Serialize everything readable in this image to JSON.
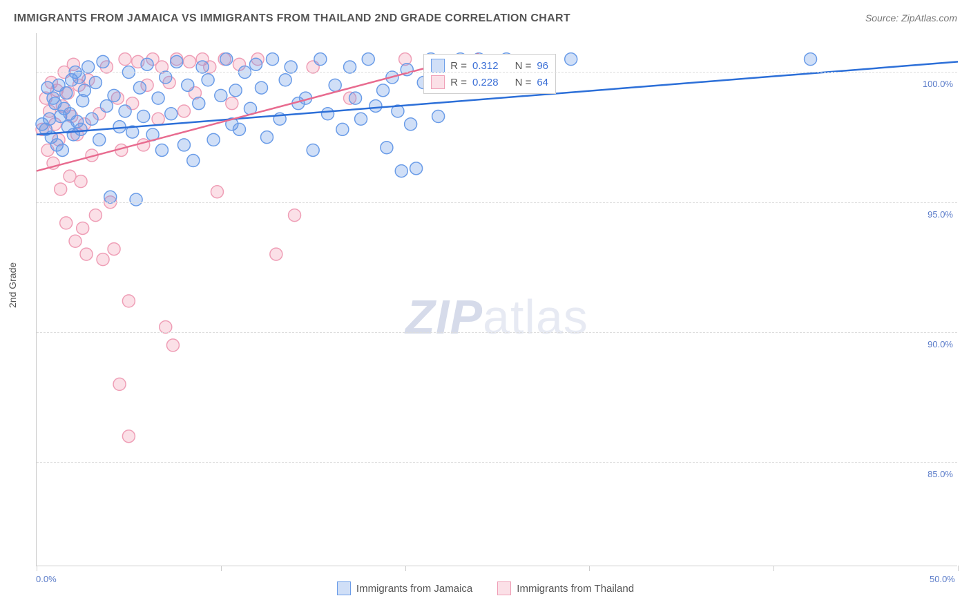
{
  "title": "IMMIGRANTS FROM JAMAICA VS IMMIGRANTS FROM THAILAND 2ND GRADE CORRELATION CHART",
  "source": "Source: ZipAtlas.com",
  "y_axis_title": "2nd Grade",
  "watermark": {
    "bold": "ZIP",
    "rest": "atlas"
  },
  "chart": {
    "type": "scatter",
    "xlim": [
      0,
      50
    ],
    "ylim": [
      81,
      101.5
    ],
    "x_ticks": [
      0,
      10,
      20,
      30,
      40,
      50
    ],
    "x_tick_labels": {
      "0": "0.0%",
      "50": "50.0%"
    },
    "y_ticks": [
      85,
      90,
      95,
      100
    ],
    "y_tick_labels": [
      "85.0%",
      "90.0%",
      "95.0%",
      "100.0%"
    ],
    "background_color": "#ffffff",
    "grid_color": "#dddddd",
    "axis_color": "#cccccc",
    "marker_radius": 9,
    "marker_stroke_width": 1.5,
    "trend_line_width": 2.5
  },
  "series": [
    {
      "name": "Immigrants from Jamaica",
      "fill_color": "rgba(100,150,230,0.30)",
      "stroke_color": "#6a9ce8",
      "trend_color": "#2c6fd8",
      "R": "0.312",
      "N": "96",
      "trend": {
        "x1": 0,
        "y1": 97.6,
        "x2": 50,
        "y2": 100.4
      },
      "points": [
        [
          0.3,
          98.0
        ],
        [
          0.5,
          97.8
        ],
        [
          0.6,
          99.4
        ],
        [
          0.7,
          98.2
        ],
        [
          0.8,
          97.5
        ],
        [
          0.9,
          99.0
        ],
        [
          1.0,
          98.8
        ],
        [
          1.1,
          97.2
        ],
        [
          1.2,
          99.5
        ],
        [
          1.3,
          98.3
        ],
        [
          1.4,
          97.0
        ],
        [
          1.5,
          98.6
        ],
        [
          1.6,
          99.2
        ],
        [
          1.7,
          97.9
        ],
        [
          1.8,
          98.4
        ],
        [
          1.9,
          99.7
        ],
        [
          2.0,
          97.6
        ],
        [
          2.1,
          100.0
        ],
        [
          2.2,
          98.1
        ],
        [
          2.3,
          99.8
        ],
        [
          2.4,
          97.8
        ],
        [
          2.5,
          98.9
        ],
        [
          2.6,
          99.3
        ],
        [
          2.8,
          100.2
        ],
        [
          3.0,
          98.2
        ],
        [
          3.2,
          99.6
        ],
        [
          3.4,
          97.4
        ],
        [
          3.6,
          100.4
        ],
        [
          3.8,
          98.7
        ],
        [
          4.0,
          95.2
        ],
        [
          4.2,
          99.1
        ],
        [
          4.5,
          97.9
        ],
        [
          4.8,
          98.5
        ],
        [
          5.0,
          100.0
        ],
        [
          5.2,
          97.7
        ],
        [
          5.4,
          95.1
        ],
        [
          5.6,
          99.4
        ],
        [
          5.8,
          98.3
        ],
        [
          6.0,
          100.3
        ],
        [
          6.3,
          97.6
        ],
        [
          6.6,
          99.0
        ],
        [
          6.8,
          97.0
        ],
        [
          7.0,
          99.8
        ],
        [
          7.3,
          98.4
        ],
        [
          7.6,
          100.4
        ],
        [
          8.0,
          97.2
        ],
        [
          8.2,
          99.5
        ],
        [
          8.5,
          96.6
        ],
        [
          8.8,
          98.8
        ],
        [
          9.0,
          100.2
        ],
        [
          9.3,
          99.7
        ],
        [
          9.6,
          97.4
        ],
        [
          10.0,
          99.1
        ],
        [
          10.3,
          100.5
        ],
        [
          10.6,
          98.0
        ],
        [
          10.8,
          99.3
        ],
        [
          11.0,
          97.8
        ],
        [
          11.3,
          100.0
        ],
        [
          11.6,
          98.6
        ],
        [
          11.9,
          100.3
        ],
        [
          12.2,
          99.4
        ],
        [
          12.5,
          97.5
        ],
        [
          12.8,
          100.5
        ],
        [
          13.2,
          98.2
        ],
        [
          13.5,
          99.7
        ],
        [
          13.8,
          100.2
        ],
        [
          14.2,
          98.8
        ],
        [
          14.6,
          99.0
        ],
        [
          15.0,
          97.0
        ],
        [
          15.4,
          100.5
        ],
        [
          15.8,
          98.4
        ],
        [
          16.2,
          99.5
        ],
        [
          16.6,
          97.8
        ],
        [
          17.0,
          100.2
        ],
        [
          17.3,
          99.0
        ],
        [
          17.6,
          98.2
        ],
        [
          18.0,
          100.5
        ],
        [
          18.4,
          98.7
        ],
        [
          18.8,
          99.3
        ],
        [
          19.0,
          97.1
        ],
        [
          19.3,
          99.8
        ],
        [
          19.6,
          98.5
        ],
        [
          19.8,
          96.2
        ],
        [
          20.1,
          100.1
        ],
        [
          20.3,
          98.0
        ],
        [
          20.6,
          96.3
        ],
        [
          21.0,
          99.6
        ],
        [
          21.4,
          100.5
        ],
        [
          21.8,
          98.3
        ],
        [
          22.3,
          100.3
        ],
        [
          23.0,
          100.5
        ],
        [
          24.0,
          100.5
        ],
        [
          25.5,
          100.5
        ],
        [
          27.0,
          99.8
        ],
        [
          29.0,
          100.5
        ],
        [
          42.0,
          100.5
        ]
      ]
    },
    {
      "name": "Immigrants from Thailand",
      "fill_color": "rgba(240,130,160,0.25)",
      "stroke_color": "#ef9eb6",
      "trend_color": "#e86b8f",
      "R": "0.228",
      "N": "64",
      "trend": {
        "x1": 0,
        "y1": 96.2,
        "x2": 24,
        "y2": 100.7
      },
      "points": [
        [
          0.3,
          97.8
        ],
        [
          0.5,
          99.0
        ],
        [
          0.6,
          97.0
        ],
        [
          0.7,
          98.5
        ],
        [
          0.8,
          99.6
        ],
        [
          0.9,
          96.5
        ],
        [
          1.0,
          98.0
        ],
        [
          1.1,
          99.3
        ],
        [
          1.2,
          97.4
        ],
        [
          1.3,
          95.5
        ],
        [
          1.4,
          98.7
        ],
        [
          1.5,
          100.0
        ],
        [
          1.6,
          94.2
        ],
        [
          1.7,
          99.2
        ],
        [
          1.8,
          96.0
        ],
        [
          1.9,
          98.3
        ],
        [
          2.0,
          100.3
        ],
        [
          2.1,
          93.5
        ],
        [
          2.2,
          97.6
        ],
        [
          2.3,
          99.5
        ],
        [
          2.4,
          95.8
        ],
        [
          2.5,
          94.0
        ],
        [
          2.6,
          98.0
        ],
        [
          2.7,
          93.0
        ],
        [
          2.8,
          99.7
        ],
        [
          3.0,
          96.8
        ],
        [
          3.2,
          94.5
        ],
        [
          3.4,
          98.4
        ],
        [
          3.6,
          92.8
        ],
        [
          3.8,
          100.2
        ],
        [
          4.0,
          95.0
        ],
        [
          4.2,
          93.2
        ],
        [
          4.4,
          99.0
        ],
        [
          4.6,
          97.0
        ],
        [
          4.8,
          100.5
        ],
        [
          5.0,
          91.2
        ],
        [
          5.2,
          98.8
        ],
        [
          5.5,
          100.4
        ],
        [
          5.8,
          97.2
        ],
        [
          6.0,
          99.5
        ],
        [
          6.3,
          100.5
        ],
        [
          6.6,
          98.2
        ],
        [
          6.8,
          100.2
        ],
        [
          7.0,
          90.2
        ],
        [
          7.2,
          99.6
        ],
        [
          7.4,
          89.5
        ],
        [
          7.6,
          100.5
        ],
        [
          8.0,
          98.5
        ],
        [
          8.3,
          100.4
        ],
        [
          8.6,
          99.2
        ],
        [
          9.0,
          100.5
        ],
        [
          9.4,
          100.2
        ],
        [
          9.8,
          95.4
        ],
        [
          10.2,
          100.5
        ],
        [
          10.6,
          98.8
        ],
        [
          11.0,
          100.3
        ],
        [
          12.0,
          100.5
        ],
        [
          13.0,
          93.0
        ],
        [
          14.0,
          94.5
        ],
        [
          15.0,
          100.2
        ],
        [
          17.0,
          99.0
        ],
        [
          20.0,
          100.5
        ],
        [
          5.0,
          86.0
        ],
        [
          4.5,
          88.0
        ]
      ]
    }
  ],
  "legend_stats_labels": {
    "R": "R =",
    "N": "N ="
  },
  "legend_bottom": [
    {
      "label_key": "series.0.name",
      "fill": "rgba(100,150,230,0.30)",
      "stroke": "#6a9ce8"
    },
    {
      "label_key": "series.1.name",
      "fill": "rgba(240,130,160,0.25)",
      "stroke": "#ef9eb6"
    }
  ]
}
